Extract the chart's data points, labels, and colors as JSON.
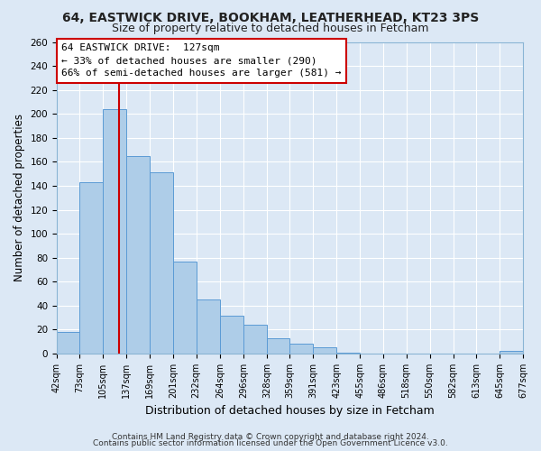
{
  "title": "64, EASTWICK DRIVE, BOOKHAM, LEATHERHEAD, KT23 3PS",
  "subtitle": "Size of property relative to detached houses in Fetcham",
  "xlabel": "Distribution of detached houses by size in Fetcham",
  "ylabel": "Number of detached properties",
  "bar_left_edges": [
    42,
    73,
    105,
    137,
    169,
    201,
    232,
    264,
    296,
    328,
    359,
    391,
    423,
    455,
    486,
    518,
    550,
    582,
    613,
    645
  ],
  "bar_widths": [
    31,
    32,
    32,
    32,
    32,
    31,
    32,
    32,
    32,
    31,
    32,
    32,
    32,
    31,
    32,
    32,
    32,
    31,
    32,
    32
  ],
  "bar_heights": [
    18,
    143,
    204,
    165,
    151,
    77,
    45,
    32,
    24,
    13,
    8,
    5,
    1,
    0,
    0,
    0,
    0,
    0,
    0,
    2
  ],
  "tick_labels": [
    "42sqm",
    "73sqm",
    "105sqm",
    "137sqm",
    "169sqm",
    "201sqm",
    "232sqm",
    "264sqm",
    "296sqm",
    "328sqm",
    "359sqm",
    "391sqm",
    "423sqm",
    "455sqm",
    "486sqm",
    "518sqm",
    "550sqm",
    "582sqm",
    "613sqm",
    "645sqm",
    "677sqm"
  ],
  "bar_color": "#aecde8",
  "bar_edge_color": "#5b9bd5",
  "vline_x": 127,
  "vline_color": "#cc0000",
  "annotation_title": "64 EASTWICK DRIVE:  127sqm",
  "annotation_line1": "← 33% of detached houses are smaller (290)",
  "annotation_line2": "66% of semi-detached houses are larger (581) →",
  "annotation_box_color": "#ffffff",
  "annotation_border_color": "#cc0000",
  "ylim": [
    0,
    260
  ],
  "yticks": [
    0,
    20,
    40,
    60,
    80,
    100,
    120,
    140,
    160,
    180,
    200,
    220,
    240,
    260
  ],
  "footer1": "Contains HM Land Registry data © Crown copyright and database right 2024.",
  "footer2": "Contains public sector information licensed under the Open Government Licence v3.0.",
  "bg_color": "#dce8f5",
  "plot_bg_color": "#dce8f5",
  "grid_color": "#ffffff",
  "title_fontsize": 10,
  "subtitle_fontsize": 9,
  "ylabel_fontsize": 8.5,
  "xlabel_fontsize": 9,
  "tick_fontsize": 7,
  "footer_fontsize": 6.5
}
